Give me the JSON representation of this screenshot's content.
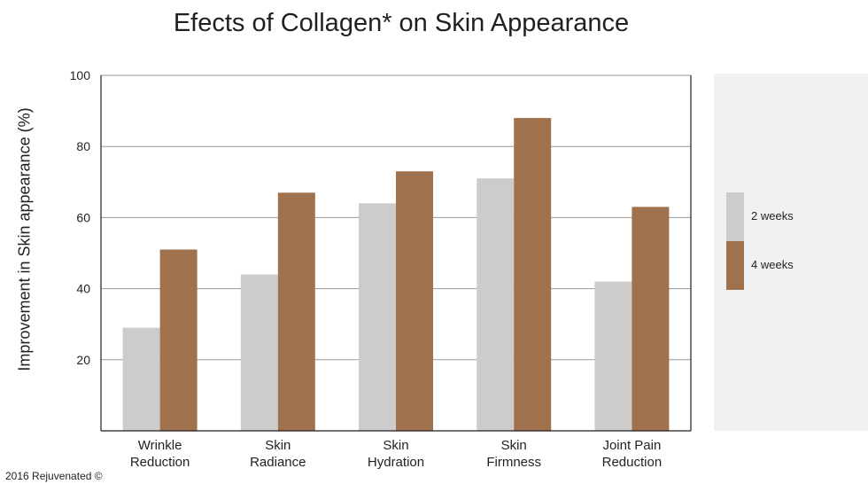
{
  "chart_data": {
    "type": "bar",
    "title": "Efects of Collagen* on Skin Appearance",
    "xlabel": "",
    "ylabel": "Improvement in Skin appearance (%)",
    "ylim": [
      0,
      100
    ],
    "yticks": [
      20,
      40,
      60,
      80,
      100
    ],
    "grid": true,
    "legend_position": "right",
    "categories": [
      [
        "Wrinkle",
        "Reduction"
      ],
      [
        "Skin",
        "Radiance"
      ],
      [
        "Skin",
        "Hydration"
      ],
      [
        "Skin",
        "Firmness"
      ],
      [
        "Joint Pain",
        "Reduction"
      ]
    ],
    "series": [
      {
        "name": "2 weeks",
        "color": "#cccccc",
        "values": [
          29,
          44,
          64,
          71,
          42
        ]
      },
      {
        "name": "4 weeks",
        "color": "#a0714d",
        "values": [
          51,
          67,
          73,
          88,
          63
        ]
      }
    ]
  },
  "footer": {
    "copyright": "2016 Rejuvenated ©"
  }
}
